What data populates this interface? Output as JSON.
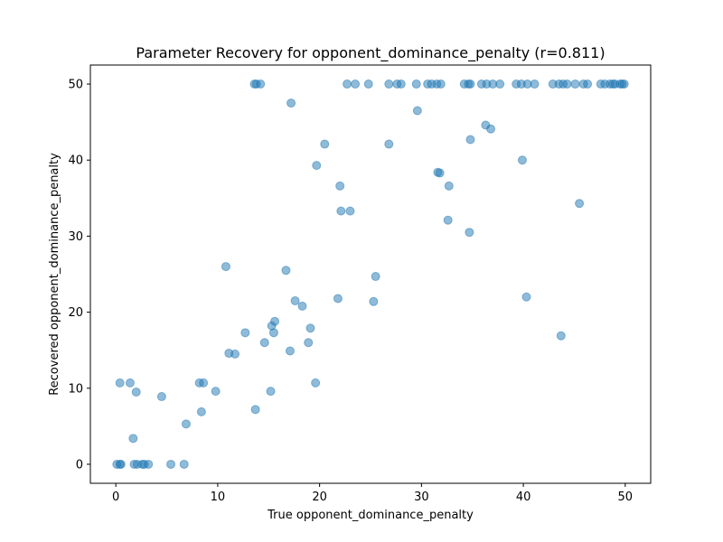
{
  "chart_data": {
    "type": "scatter",
    "title": "Parameter Recovery for opponent_dominance_penalty (r=0.811)",
    "xlabel": "True opponent_dominance_penalty",
    "ylabel": "Recovered opponent_dominance_penalty",
    "xlim": [
      -2.5,
      52.5
    ],
    "ylim": [
      -2.5,
      52.5
    ],
    "xticks": [
      0,
      10,
      20,
      30,
      40,
      50
    ],
    "yticks": [
      0,
      10,
      20,
      30,
      40,
      50
    ],
    "grid": false,
    "marker_color": "#1f77b4",
    "marker_alpha": 0.5,
    "points": [
      [
        0.1,
        0
      ],
      [
        0.4,
        0
      ],
      [
        0.5,
        0
      ],
      [
        0.4,
        10.7
      ],
      [
        1.4,
        10.7
      ],
      [
        1.7,
        3.4
      ],
      [
        1.8,
        0
      ],
      [
        2.0,
        9.5
      ],
      [
        2.1,
        0
      ],
      [
        2.6,
        0
      ],
      [
        2.8,
        0
      ],
      [
        3.2,
        0
      ],
      [
        4.5,
        8.9
      ],
      [
        5.4,
        0
      ],
      [
        6.7,
        0
      ],
      [
        6.9,
        5.3
      ],
      [
        8.2,
        10.7
      ],
      [
        8.4,
        6.9
      ],
      [
        8.6,
        10.7
      ],
      [
        9.8,
        9.6
      ],
      [
        10.8,
        26.0
      ],
      [
        11.1,
        14.6
      ],
      [
        11.7,
        14.5
      ],
      [
        12.7,
        17.3
      ],
      [
        13.6,
        50
      ],
      [
        13.8,
        50
      ],
      [
        13.7,
        7.2
      ],
      [
        14.2,
        50
      ],
      [
        14.6,
        16.0
      ],
      [
        15.2,
        9.6
      ],
      [
        15.3,
        18.2
      ],
      [
        15.5,
        17.3
      ],
      [
        15.6,
        18.8
      ],
      [
        16.7,
        25.5
      ],
      [
        17.1,
        14.9
      ],
      [
        17.2,
        47.5
      ],
      [
        17.6,
        21.5
      ],
      [
        18.3,
        20.8
      ],
      [
        18.9,
        16.0
      ],
      [
        19.1,
        17.9
      ],
      [
        19.6,
        10.7
      ],
      [
        19.7,
        39.3
      ],
      [
        20.5,
        42.1
      ],
      [
        21.8,
        21.8
      ],
      [
        22.0,
        36.6
      ],
      [
        22.1,
        33.3
      ],
      [
        22.7,
        50
      ],
      [
        23.0,
        33.3
      ],
      [
        23.5,
        50
      ],
      [
        24.8,
        50
      ],
      [
        25.3,
        21.4
      ],
      [
        25.5,
        24.7
      ],
      [
        26.8,
        42.1
      ],
      [
        26.8,
        50
      ],
      [
        27.6,
        50
      ],
      [
        28.0,
        50
      ],
      [
        29.5,
        50
      ],
      [
        29.6,
        46.5
      ],
      [
        30.6,
        50
      ],
      [
        31.0,
        50
      ],
      [
        31.5,
        50
      ],
      [
        31.6,
        38.4
      ],
      [
        31.8,
        38.3
      ],
      [
        31.9,
        50
      ],
      [
        32.6,
        32.1
      ],
      [
        32.7,
        36.6
      ],
      [
        34.2,
        50
      ],
      [
        34.6,
        50
      ],
      [
        34.7,
        30.5
      ],
      [
        34.8,
        42.7
      ],
      [
        34.8,
        50
      ],
      [
        35.9,
        50
      ],
      [
        36.3,
        44.6
      ],
      [
        36.4,
        50
      ],
      [
        36.8,
        44.1
      ],
      [
        37.0,
        50
      ],
      [
        37.7,
        50
      ],
      [
        39.3,
        50
      ],
      [
        39.8,
        50
      ],
      [
        39.9,
        40.0
      ],
      [
        40.3,
        22.0
      ],
      [
        40.4,
        50
      ],
      [
        41.1,
        50
      ],
      [
        42.9,
        50
      ],
      [
        43.5,
        50
      ],
      [
        43.7,
        16.9
      ],
      [
        43.9,
        50
      ],
      [
        44.3,
        50
      ],
      [
        45.1,
        50
      ],
      [
        45.5,
        34.3
      ],
      [
        45.9,
        50
      ],
      [
        46.3,
        50
      ],
      [
        47.6,
        50
      ],
      [
        48.0,
        50
      ],
      [
        48.5,
        50
      ],
      [
        48.8,
        50
      ],
      [
        49.0,
        50
      ],
      [
        49.5,
        50
      ],
      [
        49.7,
        50
      ],
      [
        49.9,
        50
      ]
    ]
  }
}
